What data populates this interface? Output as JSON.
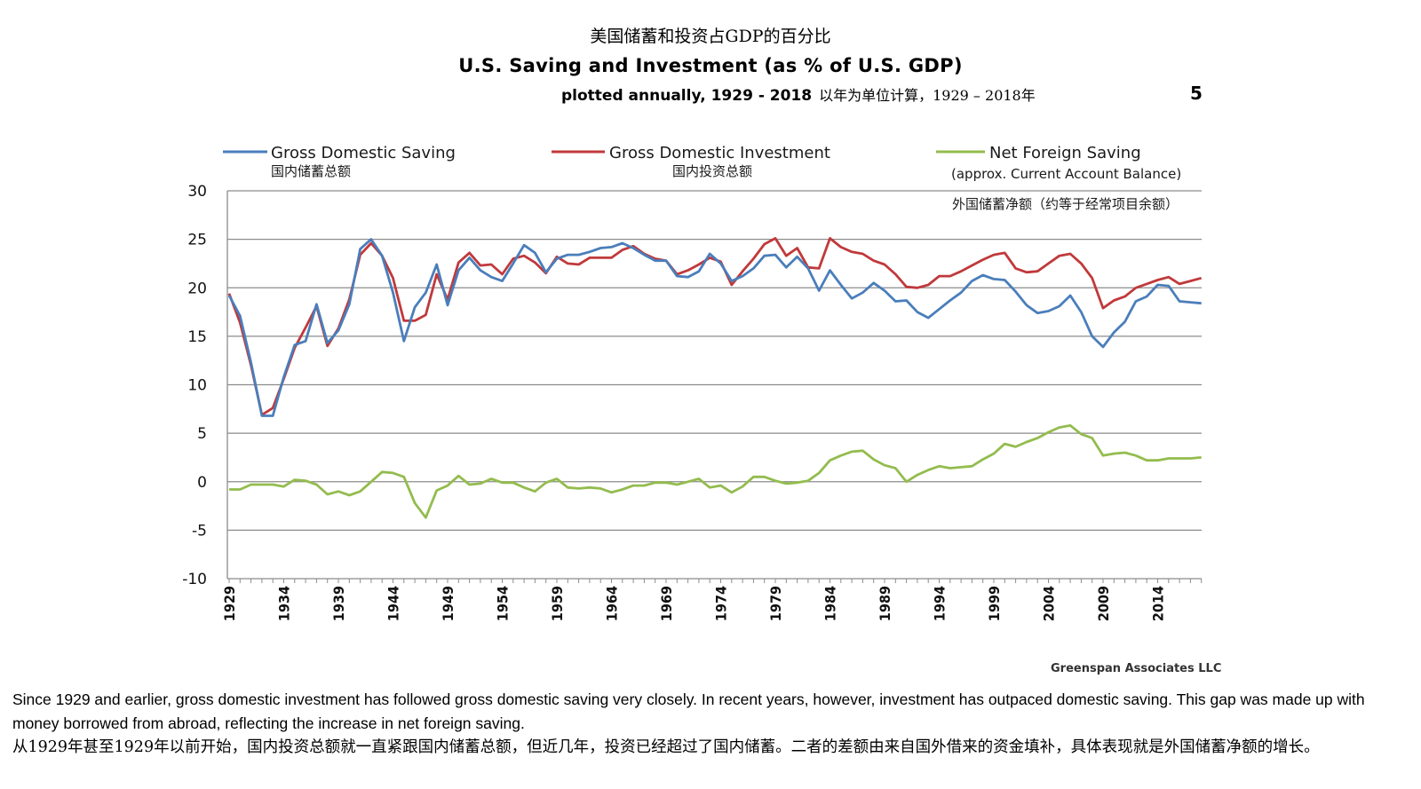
{
  "header": {
    "title_cn": "美国储蓄和投资占GDP的百分比",
    "title_en": "U.S. Saving and Investment (as % of U.S. GDP)",
    "subtitle_en": "plotted annually, 1929 - 2018",
    "subtitle_cn": "以年为单位计算，1929 – 2018年",
    "page_number": "5"
  },
  "legend": {
    "gds_en": "Gross Domestic Saving",
    "gds_cn": "国内储蓄总额",
    "gdi_en": "Gross Domestic Investment",
    "gdi_cn": "国内投资总额",
    "nfs_en": "Net Foreign Saving",
    "nfs_sub": "(approx. Current Account Balance)",
    "nfs_cn": "外国储蓄净额（约等于经常项目余额）"
  },
  "colors": {
    "gds": "#4a7ebb",
    "gdi": "#c0393b",
    "nfs": "#93bc4e",
    "grid": "#8c8c8c"
  },
  "chart_data": {
    "type": "line",
    "title": "U.S. Saving and Investment (as % of U.S. GDP)",
    "xlabel": "",
    "ylabel": "",
    "ylim": [
      -10,
      30
    ],
    "yticks": [
      30,
      25,
      20,
      15,
      10,
      5,
      0,
      -5,
      -10
    ],
    "xlim": [
      1929,
      2018
    ],
    "xticks": [
      "1929",
      "1934",
      "1939",
      "1944",
      "1949",
      "1954",
      "1959",
      "1964",
      "1969",
      "1974",
      "1979",
      "1984",
      "1989",
      "1994",
      "1999",
      "2004",
      "2009",
      "2014"
    ],
    "grid": true,
    "legend_position": "top",
    "x_start": 1929,
    "series": [
      {
        "name": "Gross Domestic Saving",
        "key": "gds",
        "values": [
          19.2,
          17.1,
          12.3,
          6.8,
          6.8,
          10.8,
          14.1,
          14.5,
          18.3,
          14.3,
          15.6,
          18.3,
          24.0,
          25.0,
          23.3,
          19.5,
          14.5,
          18.0,
          19.5,
          22.4,
          18.2,
          21.8,
          23.1,
          21.8,
          21.1,
          20.7,
          22.5,
          24.4,
          23.6,
          21.6,
          23.0,
          23.4,
          23.4,
          23.7,
          24.1,
          24.2,
          24.6,
          24.1,
          23.4,
          22.8,
          22.8,
          21.2,
          21.1,
          21.7,
          23.5,
          22.5,
          20.7,
          21.2,
          22.0,
          23.3,
          23.4,
          22.1,
          23.2,
          22.0,
          19.7,
          21.8,
          20.3,
          18.9,
          19.5,
          20.5,
          19.7,
          18.6,
          18.7,
          17.5,
          16.9,
          17.8,
          18.7,
          19.5,
          20.7,
          21.3,
          20.9,
          20.8,
          19.6,
          18.2,
          17.4,
          17.6,
          18.1,
          19.2,
          17.5,
          15.0,
          13.9,
          15.4,
          16.5,
          18.6,
          19.1,
          20.3,
          20.2,
          18.6,
          18.5,
          18.4
        ]
      },
      {
        "name": "Gross Domestic Investment",
        "key": "gdi",
        "values": [
          19.4,
          16.4,
          12.0,
          6.9,
          7.6,
          10.6,
          13.8,
          15.9,
          18.1,
          14.0,
          15.8,
          18.8,
          23.4,
          24.6,
          23.3,
          21.0,
          16.6,
          16.6,
          17.2,
          21.4,
          18.8,
          22.6,
          23.6,
          22.3,
          22.4,
          21.4,
          23.0,
          23.3,
          22.6,
          21.5,
          23.2,
          22.5,
          22.4,
          23.1,
          23.1,
          23.1,
          23.9,
          24.3,
          23.5,
          23.0,
          22.8,
          21.4,
          21.8,
          22.4,
          23.1,
          22.7,
          20.3,
          21.7,
          23.0,
          24.5,
          25.1,
          23.3,
          24.1,
          22.1,
          22.0,
          25.1,
          24.2,
          23.7,
          23.5,
          22.8,
          22.4,
          21.4,
          20.1,
          20.0,
          20.3,
          21.2,
          21.2,
          21.7,
          22.3,
          22.9,
          23.4,
          23.6,
          22.0,
          21.6,
          21.7,
          22.5,
          23.3,
          23.5,
          22.5,
          21.0,
          17.9,
          18.7,
          19.1,
          20.0,
          20.4,
          20.8,
          21.1,
          20.4,
          20.7,
          21.0
        ]
      },
      {
        "name": "Net Foreign Saving",
        "key": "nfs",
        "values": [
          -0.8,
          -0.8,
          -0.3,
          -0.3,
          -0.3,
          -0.5,
          0.2,
          0.1,
          -0.3,
          -1.3,
          -1.0,
          -1.4,
          -1.0,
          0.0,
          1.0,
          0.9,
          0.5,
          -2.2,
          -3.7,
          -0.9,
          -0.4,
          0.6,
          -0.3,
          -0.2,
          0.3,
          -0.1,
          -0.1,
          -0.6,
          -1.0,
          -0.1,
          0.3,
          -0.6,
          -0.7,
          -0.6,
          -0.7,
          -1.1,
          -0.8,
          -0.4,
          -0.4,
          -0.1,
          -0.1,
          -0.3,
          0.0,
          0.3,
          -0.6,
          -0.4,
          -1.1,
          -0.5,
          0.5,
          0.5,
          0.1,
          -0.2,
          -0.1,
          0.1,
          0.9,
          2.2,
          2.7,
          3.1,
          3.2,
          2.3,
          1.7,
          1.4,
          0.0,
          0.7,
          1.2,
          1.6,
          1.4,
          1.5,
          1.6,
          2.3,
          2.9,
          3.9,
          3.6,
          4.1,
          4.5,
          5.1,
          5.6,
          5.8,
          4.9,
          4.5,
          2.7,
          2.9,
          3.0,
          2.7,
          2.2,
          2.2,
          2.4,
          2.4,
          2.4,
          2.5
        ]
      }
    ]
  },
  "footer": {
    "source": "Greenspan Associates LLC",
    "caption_en": "Since 1929 and earlier, gross domestic investment has followed gross domestic saving very closely. In recent years, however, investment has outpaced domestic saving. This gap was made up with money borrowed from abroad, reflecting the increase in net foreign saving.",
    "caption_cn": "从1929年甚至1929年以前开始，国内投资总额就一直紧跟国内储蓄总额，但近几年，投资已经超过了国内储蓄。二者的差额由来自国外借来的资金填补，具体表现就是外国储蓄净额的增长。"
  }
}
